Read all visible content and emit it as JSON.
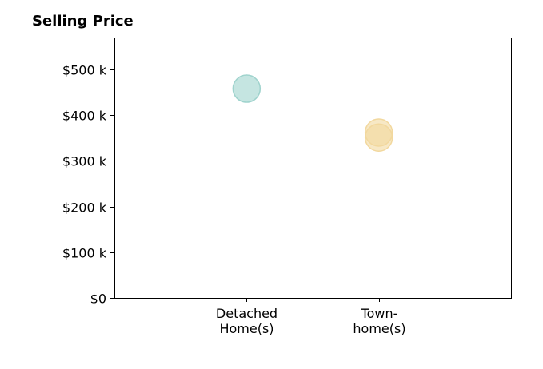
{
  "chart_data": {
    "type": "scatter",
    "title": "Selling Price",
    "xlabel": "",
    "ylabel": "",
    "categories": [
      {
        "lines": [
          "Detached",
          "Home(s)"
        ]
      },
      {
        "lines": [
          "Town-",
          "home(s)"
        ]
      }
    ],
    "x_range": [
      -1,
      2
    ],
    "ylim": [
      0,
      570000
    ],
    "y_ticks": [
      {
        "value": 0,
        "label": "$0"
      },
      {
        "value": 100000,
        "label": "$100 k"
      },
      {
        "value": 200000,
        "label": "$200 k"
      },
      {
        "value": 300000,
        "label": "$300 k"
      },
      {
        "value": 400000,
        "label": "$400 k"
      },
      {
        "value": 500000,
        "label": "$500 k"
      }
    ],
    "grid": false,
    "series": [
      {
        "color": "#9fd3cd",
        "points": [
          {
            "category": 0,
            "y": 458000
          }
        ]
      },
      {
        "color": "#f2d89e",
        "points": [
          {
            "category": 1,
            "y": 362000
          },
          {
            "category": 1,
            "y": 351000
          }
        ]
      }
    ]
  }
}
